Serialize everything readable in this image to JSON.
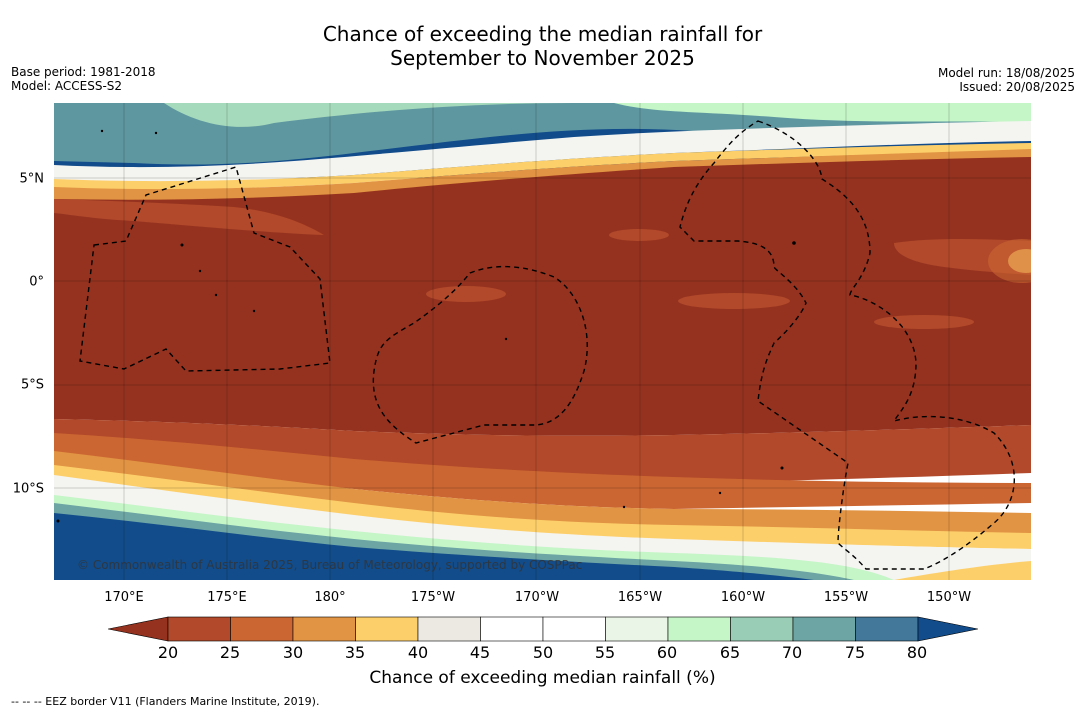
{
  "header": {
    "title_line1": "Chance of exceeding the median rainfall for",
    "title_line2": "September to November 2025",
    "base_period": "Base period: 1981-2018",
    "model": "Model: ACCESS-S2",
    "model_run": "Model run: 18/08/2025",
    "issued": "Issued: 20/08/2025"
  },
  "map": {
    "copyright": "© Commonwealth of Australia 2025, Bureau of Meteorology, supported by COSPPac",
    "lon_labels": [
      "170°E",
      "175°E",
      "180°",
      "175°W",
      "170°W",
      "165°W",
      "160°W",
      "155°W",
      "150°W"
    ],
    "lat_labels": [
      "5°N",
      "0°",
      "5°S",
      "10°S"
    ]
  },
  "legend": {
    "title": "Chance of exceeding median rainfall (%)",
    "ticks": [
      "20",
      "25",
      "30",
      "35",
      "40",
      "45",
      "50",
      "55",
      "60",
      "65",
      "70",
      "75",
      "80"
    ],
    "colors": [
      "#95321f",
      "#b1492a",
      "#cb6632",
      "#e19443",
      "#fdcf6b",
      "#ece9e2",
      "#ffffff",
      "#ffffff",
      "#eaf5e7",
      "#c5f6c7",
      "#99cdb5",
      "#6da4a4",
      "#43789b",
      "#124c8a"
    ]
  },
  "footnote": "-- -- -- EEZ border V11 (Flanders Marine Institute, 2019)."
}
